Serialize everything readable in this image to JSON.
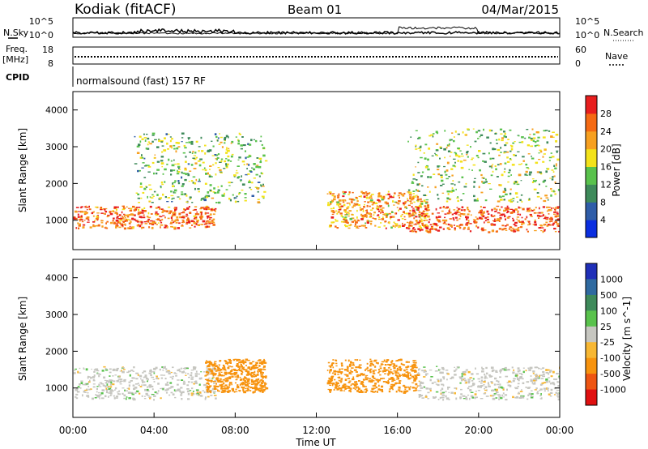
{
  "header": {
    "station": "Kodiak (fitACF)",
    "beam": "Beam 01",
    "date": "04/Mar/2015"
  },
  "top_panels": {
    "nsky_label": "N.Sky",
    "nsky_ticks": [
      "10^5",
      "10^0"
    ],
    "nsearch_label": "N.Search",
    "nsearch_ticks": [
      "10^5",
      "10^0"
    ],
    "freq_label": "Freq.",
    "freq_unit": "[MHz]",
    "freq_ticks": [
      "18",
      "8"
    ],
    "nave_label": "Nave",
    "nave_ticks": [
      "60",
      "0"
    ],
    "cpid_label": "CPID",
    "cpid_value": "normalsound (fast) 157 RF"
  },
  "colors": {
    "power_scale": [
      "#0a2ee0",
      "#2f5da8",
      "#3e8a5a",
      "#59c24c",
      "#f3e21a",
      "#f7a020",
      "#f56a13",
      "#e81e1e"
    ],
    "velocity_scale": [
      "#1f2fb8",
      "#2f6aa0",
      "#3e8a5a",
      "#59c24c",
      "#c6c6c0",
      "#f7b733",
      "#f7930e",
      "#ee5512",
      "#e01010"
    ]
  },
  "chart_data": [
    {
      "type": "heatmap",
      "name": "power",
      "ylabel": "Slant Range [km]",
      "yticks": [
        "1000",
        "2000",
        "3000",
        "4000"
      ],
      "ylim": [
        200,
        4500
      ],
      "xlim": [
        "00:00",
        "24:00"
      ],
      "colorbar": {
        "label": "Power [dB]",
        "ticks": [
          "4",
          "8",
          "12",
          "16",
          "20",
          "24",
          "28"
        ],
        "range": [
          0,
          32
        ]
      },
      "dominant_bands": [
        {
          "time_range": [
            "00:00",
            "07:00"
          ],
          "range_km": [
            800,
            1400
          ],
          "level_db": 26
        },
        {
          "time_range": [
            "03:00",
            "09:30"
          ],
          "range_km": [
            1500,
            3400
          ],
          "level_db": 14
        },
        {
          "time_range": [
            "12:30",
            "17:30"
          ],
          "range_km": [
            800,
            1800
          ],
          "level_db": 22
        },
        {
          "time_range": [
            "16:30",
            "24:00"
          ],
          "range_km": [
            700,
            1400
          ],
          "level_db": 27
        },
        {
          "time_range": [
            "16:30",
            "24:00"
          ],
          "range_km": [
            1500,
            3500
          ],
          "level_db": 15
        }
      ]
    },
    {
      "type": "heatmap",
      "name": "velocity",
      "ylabel": "Slant Range [km]",
      "yticks": [
        "1000",
        "2000",
        "3000",
        "4000"
      ],
      "ylim": [
        200,
        4500
      ],
      "xlabel": "Time UT",
      "xticks": [
        "00:00",
        "04:00",
        "08:00",
        "12:00",
        "16:00",
        "20:00",
        "00:00"
      ],
      "xlim": [
        "00:00",
        "24:00"
      ],
      "colorbar": {
        "label": "Velocity [m s^-1]",
        "ticks": [
          "1000",
          "500",
          "100",
          "25",
          "-25",
          "-100",
          "-500",
          "-1000"
        ]
      },
      "dominant_bands": [
        {
          "time_range": [
            "00:00",
            "07:00"
          ],
          "range_km": [
            700,
            1600
          ],
          "velocity": 0
        },
        {
          "time_range": [
            "06:30",
            "09:30"
          ],
          "range_km": [
            900,
            1800
          ],
          "velocity": -150
        },
        {
          "time_range": [
            "12:30",
            "17:00"
          ],
          "range_km": [
            900,
            1800
          ],
          "velocity": -150
        },
        {
          "time_range": [
            "17:00",
            "24:00"
          ],
          "range_km": [
            700,
            1600
          ],
          "velocity": 0
        }
      ]
    }
  ]
}
